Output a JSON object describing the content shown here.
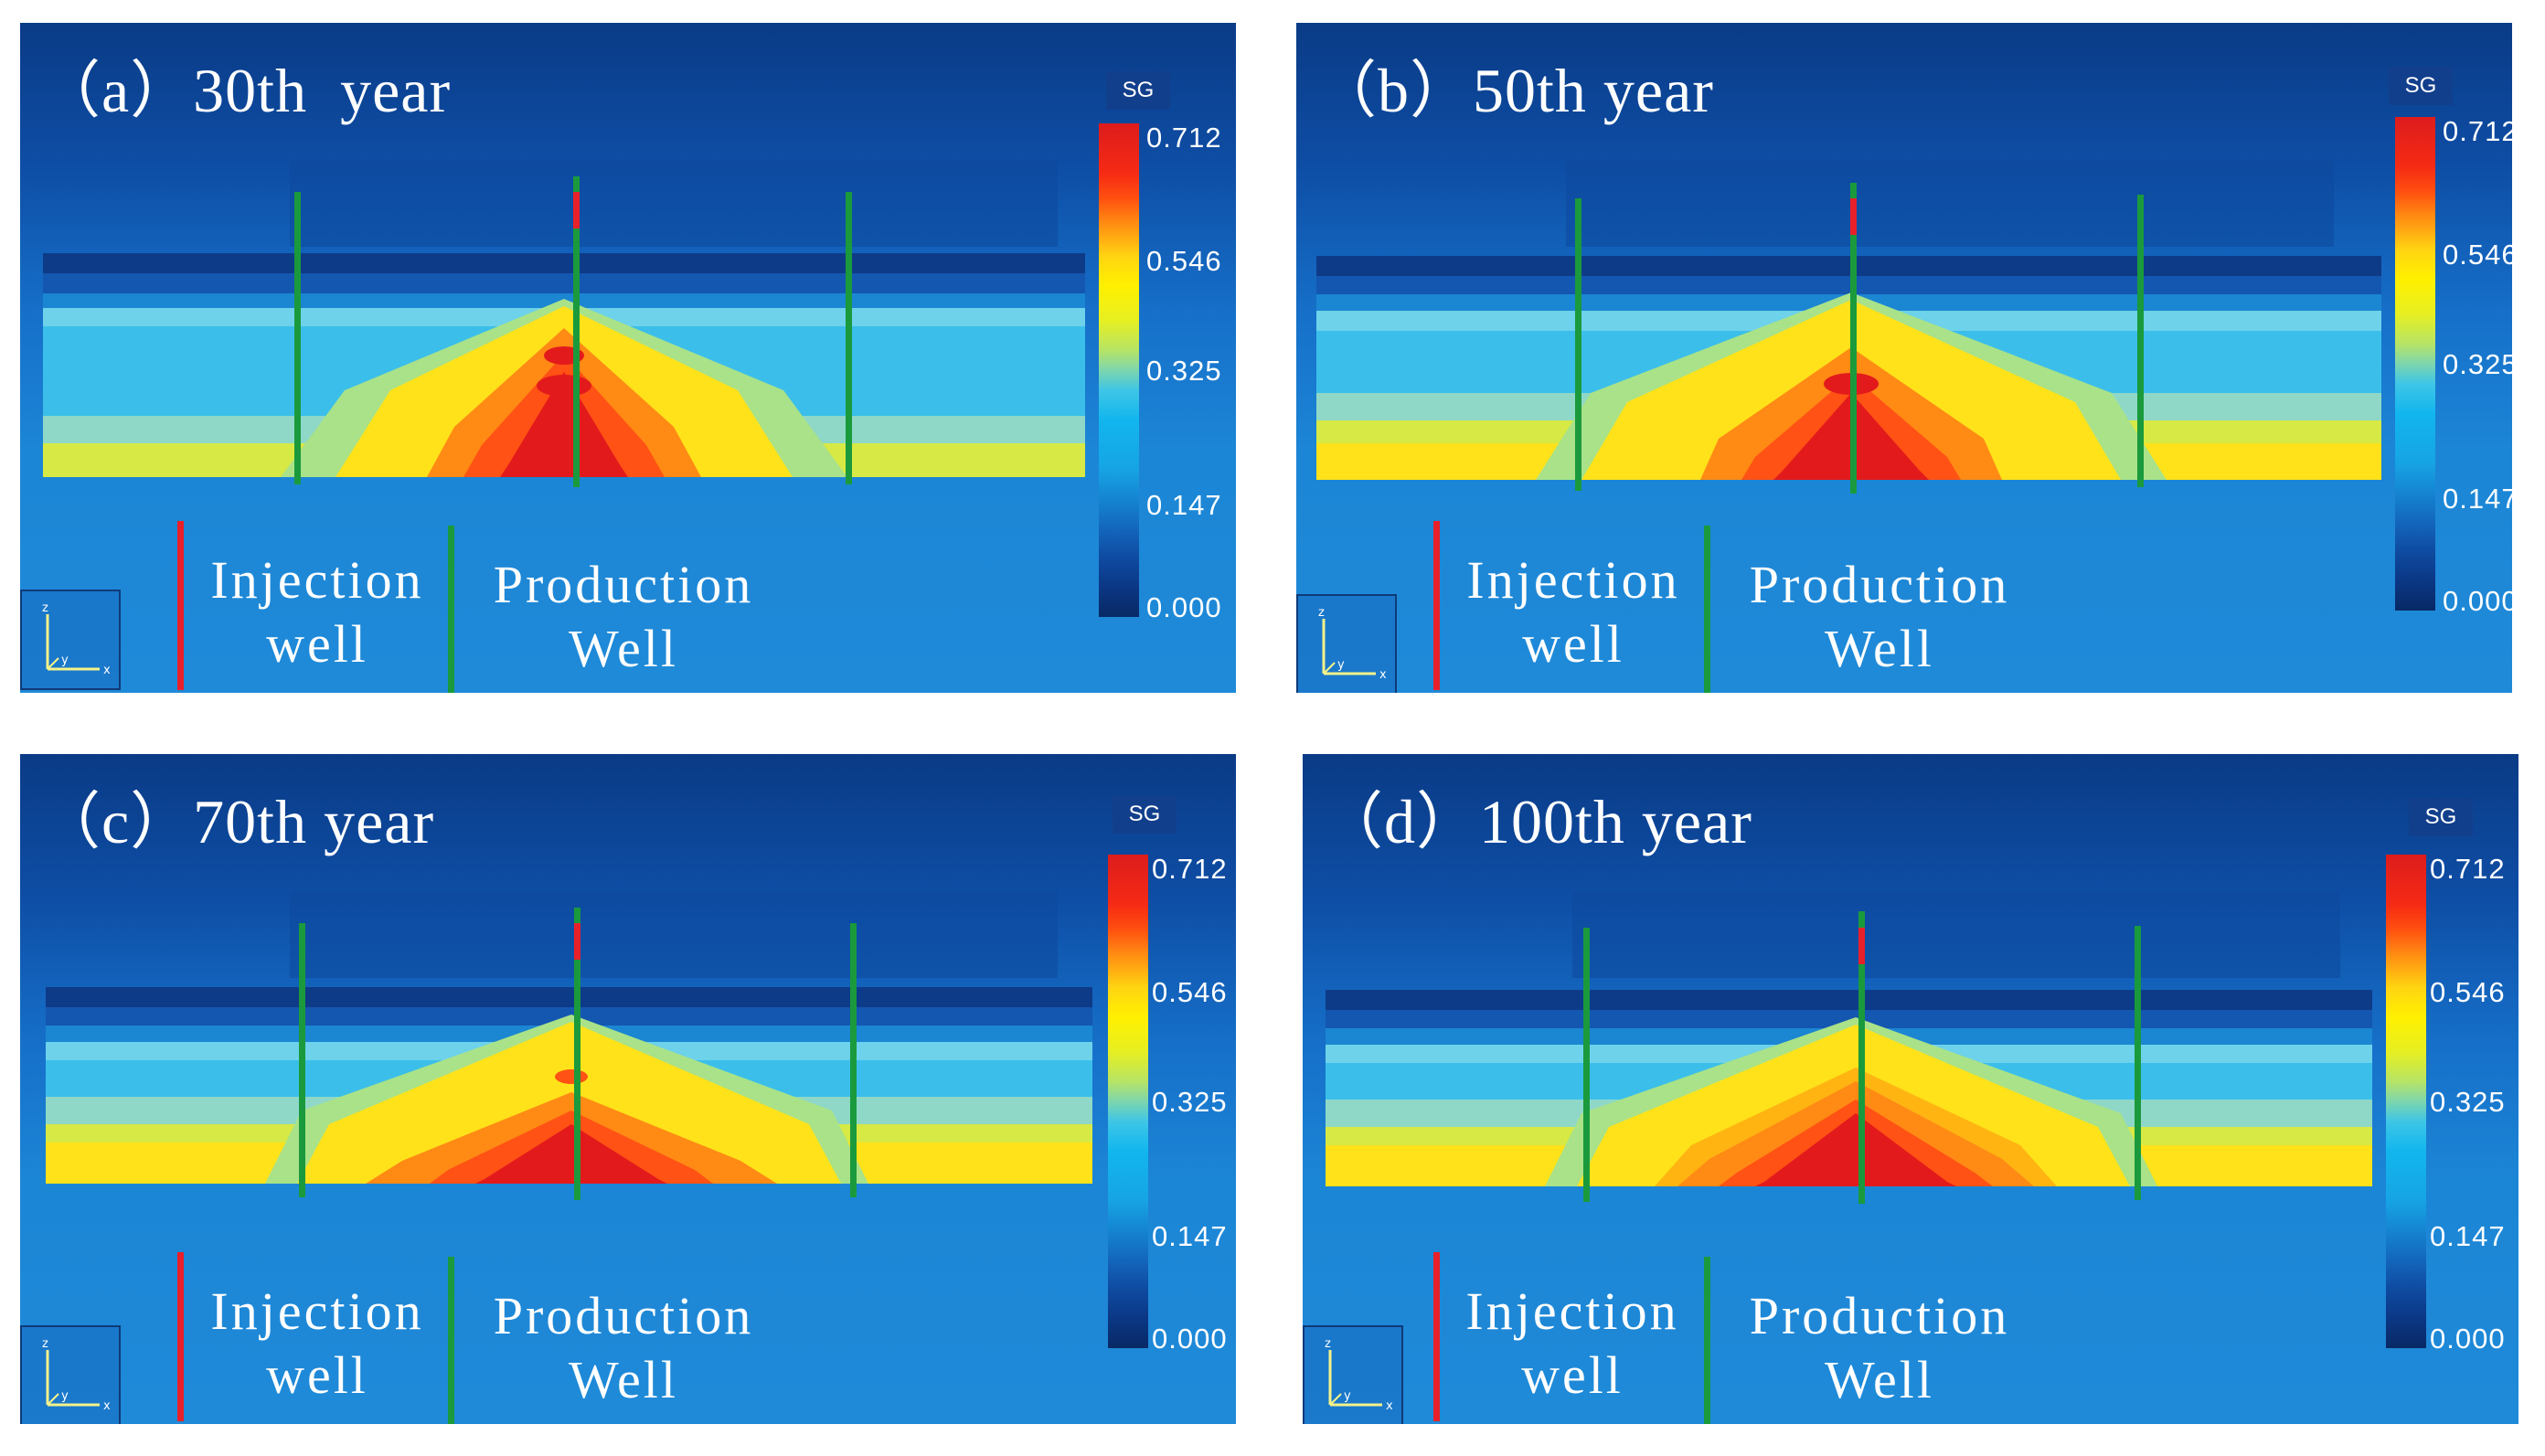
{
  "panels": [
    {
      "label": "（a）30th  year",
      "year": 30
    },
    {
      "label": "（b）50th year",
      "year": 50
    },
    {
      "label": "（c）70th year",
      "year": 70
    },
    {
      "label": "（d）100th year",
      "year": 100
    }
  ],
  "colorbar": {
    "title": "SG",
    "ticks": [
      "0.712",
      "0.546",
      "0.325",
      "0.147",
      "0.000"
    ],
    "min": 0.0,
    "max": 0.712
  },
  "legend": {
    "injection": {
      "line1": "Injection",
      "line2": "well"
    },
    "production": {
      "line1": "Production",
      "line2": "Well"
    }
  },
  "axes": {
    "z": "z",
    "y": "y",
    "x": "x"
  },
  "colors": {
    "injection_well": "#e8202a",
    "production_well": "#1a9a3c",
    "high": "#e31a1c",
    "mid": "#fff000",
    "low": "#0a2f6e"
  }
}
